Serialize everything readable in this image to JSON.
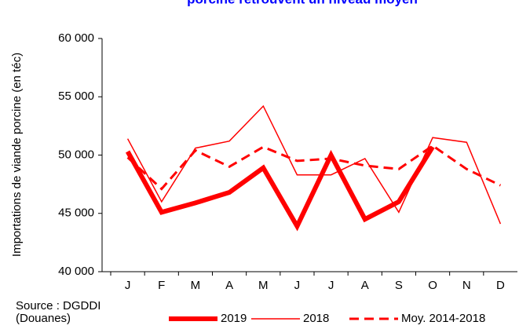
{
  "chart_data": {
    "type": "line",
    "title": "porcine retrouvent un niveau moyen",
    "ylabel": "Importations de viande porcine (en téc)",
    "source": [
      "Source : DGDDI",
      "(Douanes)"
    ],
    "categories": [
      "J",
      "F",
      "M",
      "A",
      "M",
      "J",
      "J",
      "A",
      "S",
      "O",
      "N",
      "D"
    ],
    "series": [
      {
        "name": "2019",
        "color": "#ff0000",
        "width": 6,
        "dashed": false,
        "values": [
          50300,
          45100,
          45900,
          46800,
          48900,
          43900,
          50000,
          44500,
          46000,
          50700,
          null,
          null
        ]
      },
      {
        "name": "2018",
        "color": "#ff0000",
        "width": 1.5,
        "dashed": false,
        "values": [
          51400,
          46000,
          50600,
          51200,
          54200,
          48300,
          48300,
          49700,
          45100,
          51500,
          51100,
          44100
        ]
      },
      {
        "name": "Moy. 2014-2018",
        "color": "#ff0000",
        "width": 3,
        "dashed": true,
        "values": [
          49800,
          47100,
          50400,
          49000,
          50700,
          49500,
          49700,
          49100,
          48800,
          50800,
          48800,
          47400
        ]
      }
    ],
    "ylim": [
      40000,
      60000
    ],
    "yticks": [
      {
        "value": 40000,
        "label": "40 000"
      },
      {
        "value": 45000,
        "label": "45 000"
      },
      {
        "value": 50000,
        "label": "50 000"
      },
      {
        "value": 55000,
        "label": "55 000"
      },
      {
        "value": 60000,
        "label": "60 000"
      }
    ],
    "legend": "bottom"
  }
}
